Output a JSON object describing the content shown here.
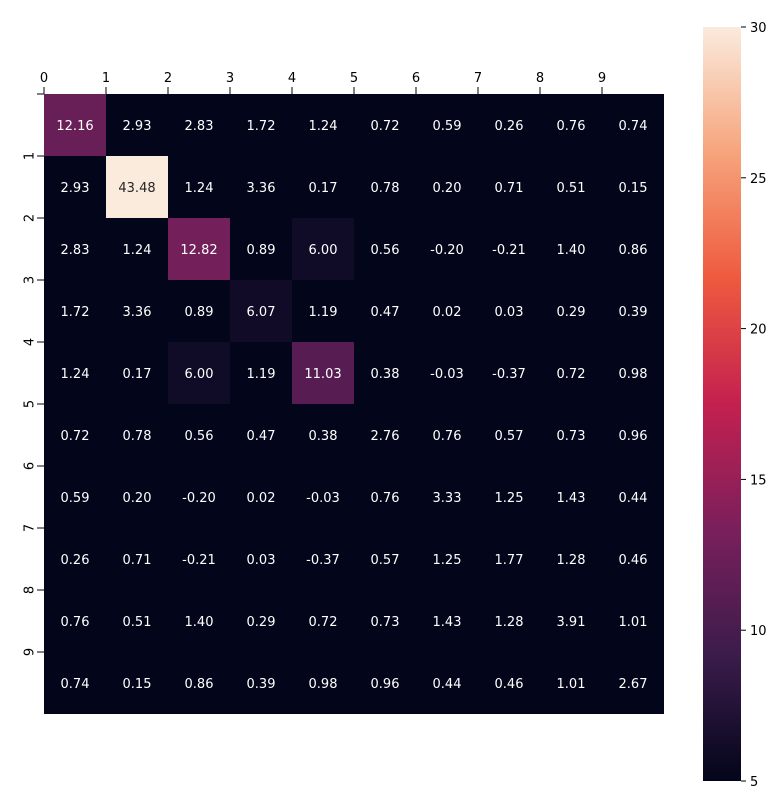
{
  "chart_data": {
    "type": "heatmap",
    "title": "",
    "xlabel": "",
    "ylabel": "",
    "x_ticks": [
      "0",
      "1",
      "2",
      "3",
      "4",
      "5",
      "6",
      "7",
      "8",
      "9"
    ],
    "y_ticks": [
      "0",
      "1",
      "2",
      "3",
      "4",
      "5",
      "6",
      "7",
      "8",
      "9"
    ],
    "x_tick_position": "top",
    "values": [
      [
        12.16,
        2.93,
        2.83,
        1.72,
        1.24,
        0.72,
        0.59,
        0.26,
        0.76,
        0.74
      ],
      [
        2.93,
        43.48,
        1.24,
        3.36,
        0.17,
        0.78,
        0.2,
        0.71,
        0.51,
        0.15
      ],
      [
        2.83,
        1.24,
        12.82,
        0.89,
        6.0,
        0.56,
        -0.2,
        -0.21,
        1.4,
        0.86
      ],
      [
        1.72,
        3.36,
        0.89,
        6.07,
        1.19,
        0.47,
        0.02,
        0.03,
        0.29,
        0.39
      ],
      [
        1.24,
        0.17,
        6.0,
        1.19,
        11.03,
        0.38,
        -0.03,
        -0.37,
        0.72,
        0.98
      ],
      [
        0.72,
        0.78,
        0.56,
        0.47,
        0.38,
        2.76,
        0.76,
        0.57,
        0.73,
        0.96
      ],
      [
        0.59,
        0.2,
        -0.2,
        0.02,
        -0.03,
        0.76,
        3.33,
        1.25,
        1.43,
        0.44
      ],
      [
        0.26,
        0.71,
        -0.21,
        0.03,
        -0.37,
        0.57,
        1.25,
        1.77,
        1.28,
        0.46
      ],
      [
        0.76,
        0.51,
        1.4,
        0.29,
        0.72,
        0.73,
        1.43,
        1.28,
        3.91,
        1.01
      ],
      [
        0.74,
        0.15,
        0.86,
        0.39,
        0.98,
        0.96,
        0.44,
        0.46,
        1.01,
        2.67
      ]
    ],
    "colorbar": {
      "range": [
        5,
        30
      ],
      "ticks": [
        "5",
        "10",
        "15",
        "20",
        "25",
        "30"
      ],
      "colormap": "rocket",
      "colormap_stops": [
        "#03051a",
        "#3b1c4b",
        "#7a1f5c",
        "#c4204f",
        "#ee5a3e",
        "#f6a47c",
        "#faebdd"
      ]
    },
    "grid": false,
    "legend": "none"
  }
}
